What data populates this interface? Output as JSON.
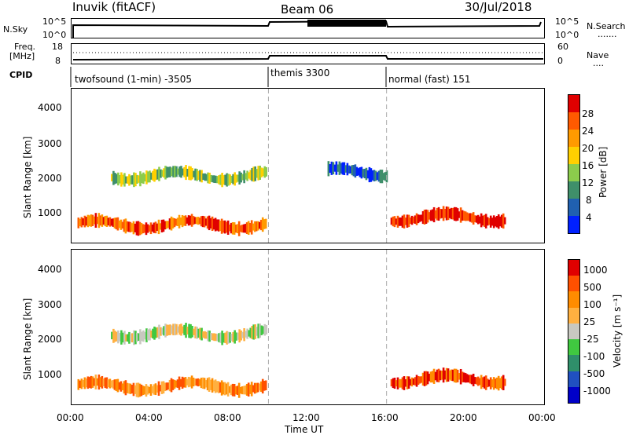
{
  "header": {
    "station": "Inuvik (fitACF)",
    "beam": "Beam 06",
    "date": "30/Jul/2018"
  },
  "top_panel": {
    "left_label": "N.Sky",
    "left_ticks": [
      "10^5",
      "10^0"
    ],
    "right_ticks": [
      "10^5",
      "10^0"
    ],
    "right_label": "N.Search",
    "right_dots": "......."
  },
  "freq_panel": {
    "left_label_1": "Freq.",
    "left_label_2": "[MHz]",
    "left_ticks": [
      "18",
      "8"
    ],
    "right_ticks": [
      "60",
      "0"
    ],
    "right_label": "Nave",
    "right_dots": "...."
  },
  "cpid": {
    "label": "CPID",
    "segments": [
      {
        "name": "twofsound (1-min) -3505"
      },
      {
        "name": "themis 3300"
      },
      {
        "name": "normal (fast) 151"
      }
    ]
  },
  "colors": {
    "power": [
      "#0020ff",
      "#2060b0",
      "#3f8f6a",
      "#8ccc4c",
      "#ffd000",
      "#ff9a00",
      "#ff5a00",
      "#e00000"
    ],
    "velocity": [
      "#e00000",
      "#ff5000",
      "#ff8c00",
      "#ffb040",
      "#c8c8c0",
      "#40c840",
      "#2f8f6a",
      "#2050c0",
      "#0000c8"
    ]
  },
  "chart_data": [
    {
      "type": "heatmap",
      "title": "",
      "xlabel": "Time UT",
      "ylabel": "Slant Range [km]",
      "x_ticks": [
        "00:00",
        "04:00",
        "08:00",
        "12:00",
        "16:00",
        "20:00",
        "00:00"
      ],
      "y_ticks": [
        "1000",
        "2000",
        "3000",
        "4000"
      ],
      "xlim_hours": [
        0,
        24
      ],
      "ylim_km": [
        180,
        4600
      ],
      "colorbar_label": "Power [dB]",
      "colorbar_ticks": [
        "4",
        "8",
        "12",
        "16",
        "20",
        "24",
        "28"
      ],
      "mode_changes_hours": [
        10.0,
        16.0
      ],
      "regions": [
        {
          "t_start": 0.3,
          "t_end": 9.9,
          "range_km": 700,
          "level": 6
        },
        {
          "t_start": 2.0,
          "t_end": 9.9,
          "range_km": 2100,
          "level": 3
        },
        {
          "t_start": 16.2,
          "t_end": 22.0,
          "range_km": 900,
          "level": 7
        },
        {
          "t_start": 13.0,
          "t_end": 16.0,
          "range_km": 2200,
          "level": 1
        }
      ]
    },
    {
      "type": "heatmap",
      "title": "",
      "xlabel": "Time UT",
      "ylabel": "Slant Range [km]",
      "x_ticks": [
        "00:00",
        "04:00",
        "08:00",
        "12:00",
        "16:00",
        "20:00",
        "00:00"
      ],
      "y_ticks": [
        "1000",
        "2000",
        "3000",
        "4000"
      ],
      "xlim_hours": [
        0,
        24
      ],
      "ylim_km": [
        180,
        4600
      ],
      "colorbar_label": "Velocity [m s⁻¹]",
      "colorbar_ticks": [
        "1000",
        "500",
        "100",
        "25",
        "-25",
        "-100",
        "-500",
        "-1000"
      ],
      "mode_changes_hours": [
        10.0,
        16.0
      ],
      "regions": [
        {
          "t_start": 0.3,
          "t_end": 9.9,
          "range_km": 700,
          "level": 2
        },
        {
          "t_start": 2.0,
          "t_end": 9.9,
          "range_km": 2200,
          "level": 4
        },
        {
          "t_start": 16.2,
          "t_end": 22.0,
          "range_km": 900,
          "level": 1
        }
      ]
    }
  ]
}
